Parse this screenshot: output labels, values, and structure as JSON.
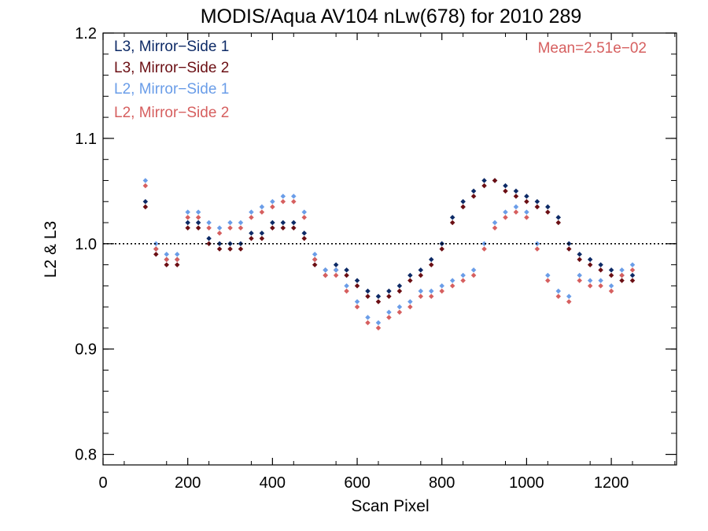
{
  "chart_data": {
    "type": "scatter",
    "title": "MODIS/Aqua AV104 nLw(678) for 2010 289",
    "xlabel": "Scan Pixel",
    "ylabel": "L2 & L3",
    "xlim": [
      0,
      1354
    ],
    "ylim": [
      0.79,
      1.2
    ],
    "x_ticks": [
      "0",
      "200",
      "400",
      "600",
      "800",
      "1000",
      "1200"
    ],
    "y_ticks": [
      "0.8",
      "0.9",
      "1.0",
      "1.1",
      "1.2"
    ],
    "reference_line": {
      "y": 1.0,
      "style": "dotted"
    },
    "annotation": {
      "text": "Mean=2.51e−02",
      "color": "#d65f5f"
    },
    "legend_placement": "top-left",
    "series": [
      {
        "name": "L3, Mirror−Side 1",
        "color": "#0d2a66",
        "x": [
          100,
          125,
          150,
          175,
          200,
          225,
          250,
          275,
          300,
          325,
          350,
          375,
          400,
          425,
          450,
          475,
          500,
          525,
          550,
          575,
          600,
          625,
          650,
          675,
          700,
          725,
          750,
          775,
          800,
          825,
          850,
          875,
          900,
          925,
          950,
          975,
          1000,
          1025,
          1050,
          1075,
          1100,
          1125,
          1150,
          1175,
          1200,
          1225,
          1250
        ],
        "y": [
          1.04,
          0.995,
          0.985,
          0.985,
          1.02,
          1.02,
          1.005,
          1.0,
          1.0,
          1.0,
          1.01,
          1.01,
          1.02,
          1.02,
          1.02,
          1.01,
          0.985,
          0.975,
          0.98,
          0.975,
          0.965,
          0.955,
          0.95,
          0.955,
          0.96,
          0.97,
          0.975,
          0.985,
          1.0,
          1.025,
          1.04,
          1.05,
          1.06,
          1.06,
          1.055,
          1.05,
          1.045,
          1.04,
          1.035,
          1.025,
          1.0,
          0.99,
          0.985,
          0.98,
          0.975,
          0.97,
          0.97
        ]
      },
      {
        "name": "L3, Mirror−Side 2",
        "color": "#6b0f14",
        "x": [
          100,
          125,
          150,
          175,
          200,
          225,
          250,
          275,
          300,
          325,
          350,
          375,
          400,
          425,
          450,
          475,
          500,
          525,
          550,
          575,
          600,
          625,
          650,
          675,
          700,
          725,
          750,
          775,
          800,
          825,
          850,
          875,
          900,
          925,
          950,
          975,
          1000,
          1025,
          1050,
          1075,
          1100,
          1125,
          1150,
          1175,
          1200,
          1225,
          1250
        ],
        "y": [
          1.035,
          0.99,
          0.98,
          0.98,
          1.015,
          1.015,
          1.0,
          0.995,
          0.995,
          0.995,
          1.005,
          1.005,
          1.015,
          1.015,
          1.015,
          1.005,
          0.98,
          0.97,
          0.975,
          0.97,
          0.96,
          0.95,
          0.945,
          0.95,
          0.955,
          0.965,
          0.97,
          0.98,
          0.995,
          1.02,
          1.035,
          1.045,
          1.055,
          1.06,
          1.05,
          1.045,
          1.04,
          1.035,
          1.03,
          1.02,
          0.995,
          0.985,
          0.98,
          0.975,
          0.97,
          0.965,
          0.965
        ]
      },
      {
        "name": "L2, Mirror−Side 1",
        "color": "#6a9de8",
        "x": [
          100,
          125,
          150,
          175,
          200,
          225,
          250,
          275,
          300,
          325,
          350,
          375,
          400,
          425,
          450,
          475,
          500,
          525,
          550,
          575,
          600,
          625,
          650,
          675,
          700,
          725,
          750,
          775,
          800,
          825,
          850,
          875,
          900,
          925,
          950,
          975,
          1000,
          1025,
          1050,
          1075,
          1100,
          1125,
          1150,
          1175,
          1200,
          1225,
          1250
        ],
        "y": [
          1.06,
          1.0,
          0.99,
          0.99,
          1.03,
          1.03,
          1.02,
          1.015,
          1.02,
          1.02,
          1.03,
          1.035,
          1.04,
          1.045,
          1.045,
          1.03,
          0.99,
          0.975,
          0.975,
          0.96,
          0.945,
          0.93,
          0.925,
          0.935,
          0.94,
          0.945,
          0.955,
          0.955,
          0.96,
          0.965,
          0.97,
          0.975,
          1.0,
          1.02,
          1.03,
          1.035,
          1.03,
          1.0,
          0.97,
          0.955,
          0.95,
          0.97,
          0.965,
          0.965,
          0.96,
          0.975,
          0.98
        ]
      },
      {
        "name": "L2, Mirror−Side 2",
        "color": "#d65f5f",
        "x": [
          100,
          125,
          150,
          175,
          200,
          225,
          250,
          275,
          300,
          325,
          350,
          375,
          400,
          425,
          450,
          475,
          500,
          525,
          550,
          575,
          600,
          625,
          650,
          675,
          700,
          725,
          750,
          775,
          800,
          825,
          850,
          875,
          900,
          925,
          950,
          975,
          1000,
          1025,
          1050,
          1075,
          1100,
          1125,
          1150,
          1175,
          1200,
          1225,
          1250
        ],
        "y": [
          1.055,
          0.995,
          0.985,
          0.985,
          1.025,
          1.025,
          1.015,
          1.01,
          1.015,
          1.015,
          1.025,
          1.03,
          1.035,
          1.04,
          1.04,
          1.025,
          0.985,
          0.97,
          0.97,
          0.955,
          0.94,
          0.925,
          0.92,
          0.93,
          0.935,
          0.94,
          0.95,
          0.95,
          0.955,
          0.96,
          0.965,
          0.97,
          0.995,
          1.015,
          1.025,
          1.03,
          1.025,
          0.995,
          0.965,
          0.95,
          0.945,
          0.965,
          0.96,
          0.96,
          0.955,
          0.97,
          0.975
        ]
      }
    ]
  }
}
